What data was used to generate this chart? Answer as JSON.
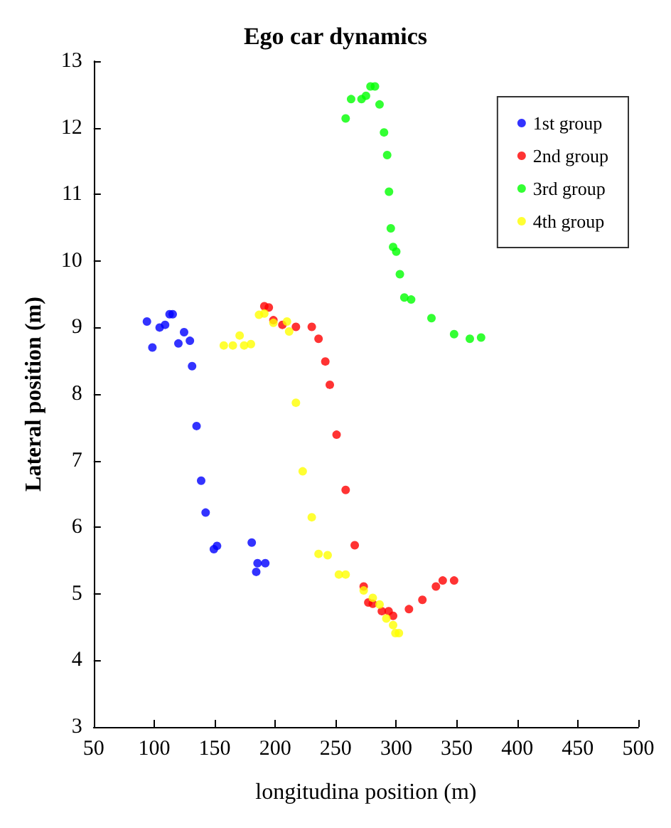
{
  "chart_data": {
    "type": "scatter",
    "title": "Ego car dynamics",
    "xlabel": "longitudina position (m)",
    "ylabel": "Lateral position (m)",
    "xlim": [
      50,
      500
    ],
    "xticks": [
      50,
      100,
      150,
      200,
      250,
      300,
      350,
      400,
      450,
      500
    ],
    "ylim": [
      3,
      13
    ],
    "yticks": [
      3,
      4,
      5,
      6,
      7,
      8,
      9,
      10,
      11,
      12,
      13
    ],
    "grid": false,
    "legend": "top right",
    "marker": "circle",
    "series": [
      {
        "name": "1st group",
        "color": "#0000ff",
        "x": [
          94,
          98.5,
          104.5,
          109,
          112.7,
          115.3,
          120,
          124.7,
          129.5,
          131.3,
          135,
          138.8,
          142.5,
          149.3,
          151.9,
          180.6,
          184.3,
          185.4,
          191.8
        ],
        "values": [
          9.09,
          8.7,
          9.0,
          9.04,
          9.2,
          9.2,
          8.76,
          8.93,
          8.8,
          8.42,
          7.52,
          6.7,
          6.22,
          5.67,
          5.72,
          5.77,
          5.33,
          5.46,
          5.46
        ]
      },
      {
        "name": "2nd group",
        "color": "#ff0000",
        "x": [
          191,
          194.7,
          198.5,
          205.9,
          217.1,
          230.2,
          235.8,
          241.4,
          245.1,
          250.7,
          258.2,
          265.7,
          273.1,
          276.9,
          280.6,
          288.1,
          293.7,
          297.4,
          310.5,
          321.6,
          332.8,
          338.4,
          347.8
        ],
        "values": [
          9.32,
          9.3,
          9.11,
          9.04,
          9.01,
          9.01,
          8.83,
          8.49,
          8.14,
          7.39,
          6.56,
          5.73,
          5.11,
          4.87,
          4.85,
          4.74,
          4.74,
          4.67,
          4.77,
          4.91,
          5.11,
          5.2,
          5.2
        ]
      },
      {
        "name": "3rd group",
        "color": "#00ff00",
        "x": [
          258.2,
          262.7,
          271.3,
          275,
          278.7,
          282.4,
          286.2,
          289.9,
          292.5,
          294,
          295.5,
          297.4,
          300,
          303,
          306.7,
          312.3,
          329.1,
          347.8,
          360.8,
          370.1
        ],
        "values": [
          12.14,
          12.43,
          12.43,
          12.48,
          12.62,
          12.62,
          12.35,
          11.93,
          11.59,
          11.04,
          10.49,
          10.21,
          10.14,
          9.8,
          9.45,
          9.42,
          9.14,
          8.9,
          8.83,
          8.85
        ]
      },
      {
        "name": "4th group",
        "color": "#ffff00",
        "x": [
          157.5,
          165,
          170.6,
          174.3,
          179.9,
          186.6,
          191,
          198.5,
          209.7,
          211.5,
          217.1,
          222.7,
          230.2,
          235.8,
          243.3,
          252.6,
          258.2,
          273.1,
          280.6,
          286.2,
          291.8,
          297.4,
          299.3,
          302.2
        ],
        "values": [
          8.73,
          8.73,
          8.88,
          8.73,
          8.75,
          9.19,
          9.21,
          9.07,
          9.09,
          8.94,
          7.87,
          6.84,
          6.15,
          5.6,
          5.58,
          5.29,
          5.29,
          5.05,
          4.94,
          4.84,
          4.63,
          4.53,
          4.41,
          4.41
        ]
      }
    ]
  }
}
